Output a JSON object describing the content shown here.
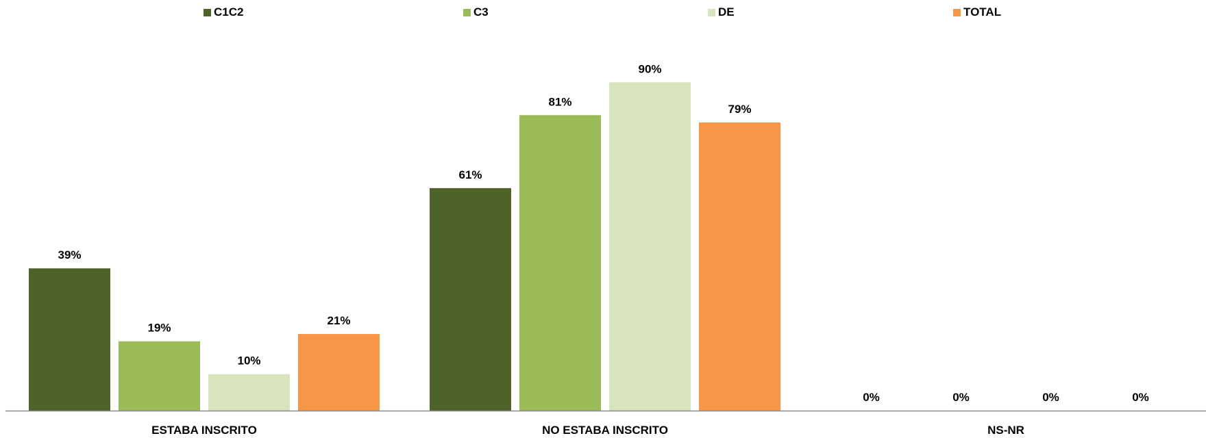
{
  "chart_data": {
    "type": "bar",
    "categories": [
      "ESTABA INSCRITO",
      "NO ESTABA INSCRITO",
      "NS-NR"
    ],
    "series": [
      {
        "name": "C1C2",
        "color": "#4F6228",
        "values": [
          39,
          61,
          0
        ],
        "labels": [
          "39%",
          "61%",
          "0%"
        ]
      },
      {
        "name": "C3",
        "color": "#9BBB59",
        "values": [
          19,
          81,
          0
        ],
        "labels": [
          "19%",
          "81%",
          "0%"
        ]
      },
      {
        "name": "DE",
        "color": "#D7E4BD",
        "values": [
          10,
          90,
          0
        ],
        "labels": [
          "10%",
          "90%",
          "0%"
        ]
      },
      {
        "name": "TOTAL",
        "color": "#F79646",
        "values": [
          21,
          79,
          0
        ],
        "labels": [
          "21%",
          "79%",
          "0%"
        ]
      }
    ],
    "ylim": [
      0,
      100
    ],
    "grid": false,
    "legend_position": "top",
    "axis_color": "#888888"
  }
}
